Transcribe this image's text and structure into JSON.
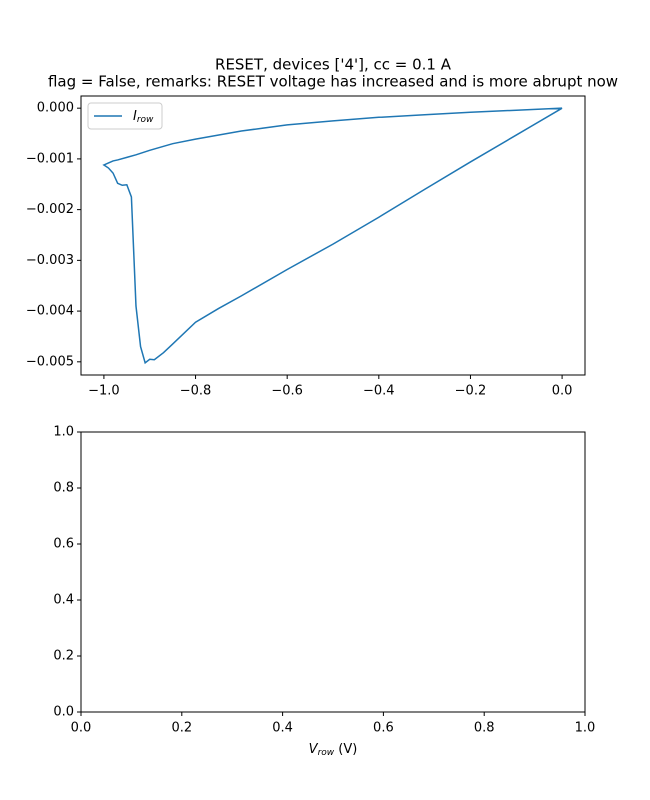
{
  "chart_data": [
    {
      "type": "line",
      "title": [
        "RESET, devices ['4'], cc = 0.1 A",
        "flag = False, remarks: RESET voltage has increased and is more abrupt now"
      ],
      "x": [
        0,
        -0.1,
        -0.2,
        -0.3,
        -0.4,
        -0.5,
        -0.6,
        -0.7,
        -0.8,
        -0.85,
        -0.9,
        -0.93,
        -0.95,
        -0.97,
        -0.98,
        -0.99,
        -1,
        -0.99,
        -0.98,
        -0.97,
        -0.96,
        -0.95,
        -0.94,
        -0.93,
        -0.92,
        -0.91,
        -0.9,
        -0.89,
        -0.87,
        -0.85,
        -0.8,
        -0.75,
        -0.7,
        -0.6,
        -0.5,
        -0.4,
        -0.3,
        -0.2,
        -0.1,
        0
      ],
      "series": [
        {
          "name": "I",
          "name_subscript": "row",
          "color": "#1f77b4",
          "values": [
            0,
            -4e-05,
            -8e-05,
            -0.00013,
            -0.00018,
            -0.00025,
            -0.00033,
            -0.00045,
            -0.00061,
            -0.0007,
            -0.00083,
            -0.00092,
            -0.00097,
            -0.00102,
            -0.00104,
            -0.00108,
            -0.00112,
            -0.00118,
            -0.00128,
            -0.00148,
            -0.00152,
            -0.00151,
            -0.00175,
            -0.0039,
            -0.0047,
            -0.00502,
            -0.00495,
            -0.00496,
            -0.00482,
            -0.00465,
            -0.00422,
            -0.00395,
            -0.0037,
            -0.00318,
            -0.00268,
            -0.00215,
            -0.0016,
            -0.00106,
            -0.00053,
            0
          ]
        }
      ],
      "xlim": [
        -1.05,
        0.05
      ],
      "ylim": [
        -0.00526,
        0.00024
      ],
      "xticks": [
        {
          "value": -1.0,
          "label": "−1.0"
        },
        {
          "value": -0.8,
          "label": "−0.8"
        },
        {
          "value": -0.6,
          "label": "−0.6"
        },
        {
          "value": -0.4,
          "label": "−0.4"
        },
        {
          "value": -0.2,
          "label": "−0.2"
        },
        {
          "value": 0,
          "label": "0.0"
        }
      ],
      "yticks": [
        {
          "value": -0.005,
          "label": "−0.005"
        },
        {
          "value": -0.004,
          "label": "−0.004"
        },
        {
          "value": -0.003,
          "label": "−0.003"
        },
        {
          "value": -0.002,
          "label": "−0.002"
        },
        {
          "value": -0.001,
          "label": "−0.001"
        },
        {
          "value": 0,
          "label": "0.000"
        }
      ],
      "legend": "upper left"
    },
    {
      "type": "line",
      "xlabel": {
        "symbol": "V",
        "subscript": "row",
        "unit": " (V)"
      },
      "xlim": [
        0,
        1
      ],
      "ylim": [
        0,
        1
      ],
      "xticks": [
        {
          "value": 0,
          "label": "0.0"
        },
        {
          "value": 0.2,
          "label": "0.2"
        },
        {
          "value": 0.4,
          "label": "0.4"
        },
        {
          "value": 0.6,
          "label": "0.6"
        },
        {
          "value": 0.8,
          "label": "0.8"
        },
        {
          "value": 1,
          "label": "1.0"
        }
      ],
      "yticks": [
        {
          "value": 0,
          "label": "0.0"
        },
        {
          "value": 0.2,
          "label": "0.2"
        },
        {
          "value": 0.4,
          "label": "0.4"
        },
        {
          "value": 0.6,
          "label": "0.6"
        },
        {
          "value": 0.8,
          "label": "0.8"
        },
        {
          "value": 1,
          "label": "1.0"
        }
      ]
    }
  ]
}
